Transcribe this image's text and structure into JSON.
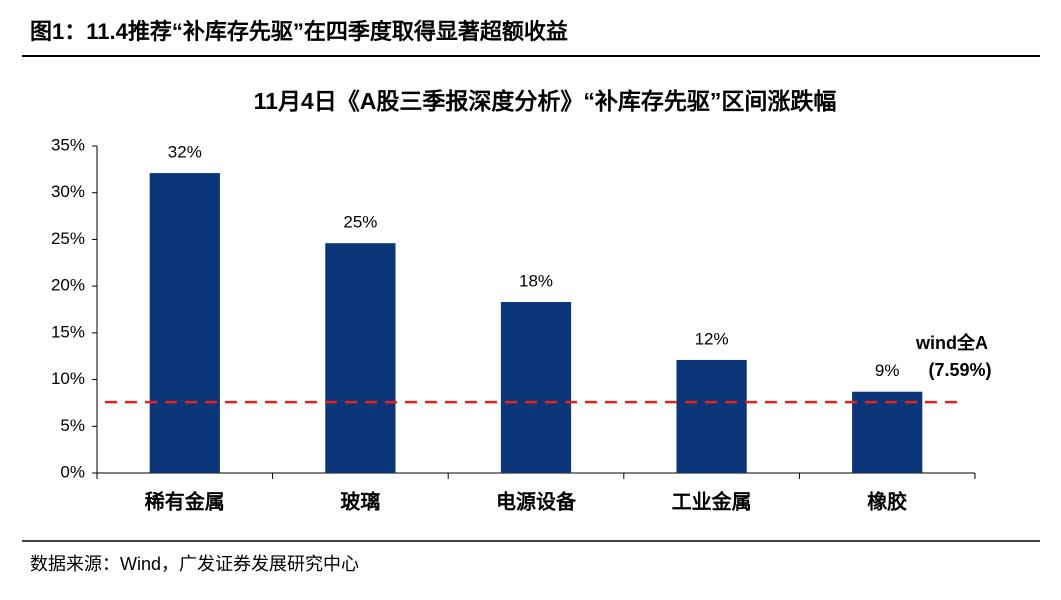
{
  "figure_title": "图1：11.4推荐“补库存先驱”在四季度取得显著超额收益",
  "source": "数据来源：Wind，广发证券发展研究中心",
  "chart_data": {
    "type": "bar",
    "title": "11月4日《A股三季报深度分析》“补库存先驱”区间涨跌幅",
    "categories": [
      "稀有金属",
      "玻璃",
      "电源设备",
      "工业金属",
      "橡胶"
    ],
    "values": [
      32.1,
      24.6,
      18.3,
      12.1,
      8.7
    ],
    "value_labels": [
      "32%",
      "25%",
      "18%",
      "12%",
      "9%"
    ],
    "color": "#0b367a",
    "ylim": [
      0,
      35
    ],
    "yticks": [
      {
        "value": 0,
        "label": "0%"
      },
      {
        "value": 5,
        "label": "5%"
      },
      {
        "value": 10,
        "label": "10%"
      },
      {
        "value": 15,
        "label": "15%"
      },
      {
        "value": 20,
        "label": "20%"
      },
      {
        "value": 25,
        "label": "25%"
      },
      {
        "value": 30,
        "label": "30%"
      },
      {
        "value": 35,
        "label": "35%"
      }
    ],
    "reference_line": {
      "value": 7.59,
      "label": "wind全A",
      "value_label": "(7.59%)",
      "color": "#e8211a"
    }
  }
}
